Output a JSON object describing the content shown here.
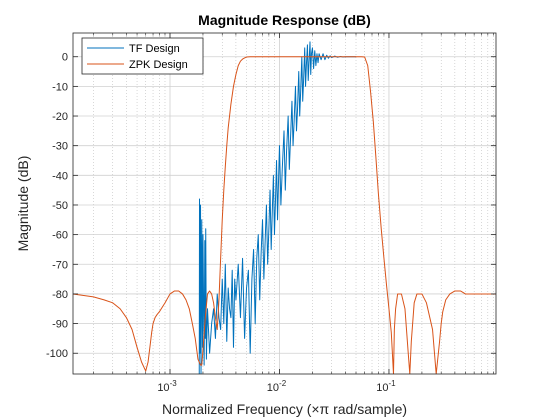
{
  "chart_data": {
    "type": "line",
    "title": "Magnitude Response (dB)",
    "xlabel": "Normalized Frequency (×π rad/sample)",
    "ylabel": "Magnitude (dB)",
    "xscale": "log",
    "xlim": [
      0.00013,
      0.95
    ],
    "ylim": [
      -107,
      8
    ],
    "grid": true,
    "legend_position": "top-left",
    "x_tick_labels": [
      {
        "value": 0.001,
        "base": "10",
        "exp": "-3"
      },
      {
        "value": 0.01,
        "base": "10",
        "exp": "-2"
      },
      {
        "value": 0.1,
        "base": "10",
        "exp": "-1"
      }
    ],
    "y_ticks": [
      0,
      -10,
      -20,
      -30,
      -40,
      -50,
      -60,
      -70,
      -80,
      -90,
      -100
    ],
    "series": [
      {
        "name": "TF Design",
        "color": "#0072BD",
        "x": [
          0.00185,
          0.00186,
          0.00188,
          0.0019,
          0.00192,
          0.00195,
          0.00198,
          0.002,
          0.00205,
          0.00208,
          0.0021,
          0.00212,
          0.00215,
          0.0022,
          0.0023,
          0.0024,
          0.0025,
          0.0026,
          0.0027,
          0.0028,
          0.0029,
          0.003,
          0.0031,
          0.0032,
          0.0033,
          0.0034,
          0.0035,
          0.0036,
          0.0037,
          0.0038,
          0.0039,
          0.004,
          0.0042,
          0.0044,
          0.0046,
          0.0048,
          0.005,
          0.0052,
          0.0054,
          0.0056,
          0.0058,
          0.006,
          0.0062,
          0.0064,
          0.0066,
          0.0068,
          0.007,
          0.0072,
          0.0074,
          0.0076,
          0.0078,
          0.008,
          0.0082,
          0.0084,
          0.0086,
          0.0088,
          0.009,
          0.0092,
          0.0094,
          0.0096,
          0.0098,
          0.01,
          0.0103,
          0.0106,
          0.011,
          0.0113,
          0.0116,
          0.012,
          0.0123,
          0.0126,
          0.013,
          0.0133,
          0.0136,
          0.014,
          0.0143,
          0.0146,
          0.015,
          0.0153,
          0.0156,
          0.016,
          0.0163,
          0.0166,
          0.017,
          0.0173,
          0.0176,
          0.018,
          0.0183,
          0.0186,
          0.019,
          0.0193,
          0.0196,
          0.02,
          0.0205,
          0.021,
          0.0215,
          0.022,
          0.0225,
          0.023,
          0.024,
          0.025,
          0.026,
          0.027,
          0.028,
          0.029,
          0.03,
          0.032,
          0.034,
          0.036,
          0.038,
          0.04,
          0.042,
          0.044,
          0.046,
          0.048,
          0.05
        ],
        "values": [
          -107,
          -48,
          -100,
          -50,
          -107,
          -55,
          -98,
          -60,
          -104,
          -62,
          -95,
          -58,
          -102,
          -85,
          -100,
          -90,
          -85,
          -95,
          -80,
          -88,
          -92,
          -75,
          -90,
          -70,
          -96,
          -78,
          -85,
          -88,
          -72,
          -98,
          -75,
          -82,
          -70,
          -88,
          -68,
          -95,
          -78,
          -72,
          -100,
          -75,
          -65,
          -90,
          -68,
          -60,
          -82,
          -66,
          -55,
          -75,
          -62,
          -50,
          -70,
          -58,
          -45,
          -65,
          -52,
          -40,
          -60,
          -48,
          -35,
          -55,
          -42,
          -30,
          -50,
          -38,
          -25,
          -45,
          -32,
          -20,
          -38,
          -28,
          -15,
          -30,
          -22,
          -10,
          -25,
          -18,
          -5,
          -20,
          -12,
          0,
          -15,
          -8,
          3,
          -10,
          -3,
          4,
          -8,
          -2,
          5,
          -6,
          1,
          3,
          -4,
          2,
          -3,
          1,
          -2,
          1,
          -1,
          1,
          -1,
          0.5,
          -0.5,
          0.3,
          -0.3,
          0.2,
          -0.2,
          0.1,
          -0.1,
          0,
          0,
          0,
          0,
          0,
          0
        ]
      },
      {
        "name": "ZPK Design",
        "color": "#D95319",
        "x": [
          0.00013,
          0.00016,
          0.0002,
          0.00025,
          0.0003,
          0.00035,
          0.0004,
          0.00045,
          0.0005,
          0.00055,
          0.0006,
          0.00063,
          0.00066,
          0.00068,
          0.0007,
          0.00073,
          0.00076,
          0.0008,
          0.0009,
          0.001,
          0.0011,
          0.0012,
          0.0013,
          0.0014,
          0.0015,
          0.0016,
          0.0017,
          0.0018,
          0.0019,
          0.00195,
          0.00198,
          0.0021,
          0.0022,
          0.0023,
          0.0024,
          0.0025,
          0.0026,
          0.0027,
          0.0028,
          0.0029,
          0.003,
          0.0031,
          0.0032,
          0.0033,
          0.0034,
          0.0036,
          0.0038,
          0.004,
          0.0042,
          0.0044,
          0.0046,
          0.0048,
          0.005,
          0.0052,
          0.0054,
          0.0056,
          0.006,
          0.01,
          0.02,
          0.04,
          0.056,
          0.06,
          0.064,
          0.068,
          0.072,
          0.076,
          0.08,
          0.085,
          0.09,
          0.095,
          0.1,
          0.105,
          0.11,
          0.112,
          0.115,
          0.12,
          0.13,
          0.14,
          0.15,
          0.155,
          0.16,
          0.17,
          0.18,
          0.2,
          0.22,
          0.25,
          0.27,
          0.29,
          0.3,
          0.31,
          0.33,
          0.36,
          0.4,
          0.45,
          0.5,
          0.55,
          0.6,
          0.7,
          0.8,
          0.95
        ],
        "values": [
          -80,
          -80.5,
          -81,
          -82,
          -83,
          -85,
          -88,
          -92,
          -98,
          -103,
          -106,
          -103,
          -97,
          -93,
          -90,
          -88,
          -87,
          -86,
          -83,
          -80,
          -79,
          -79,
          -80,
          -82,
          -85,
          -90,
          -95,
          -102,
          -104,
          -104,
          -101,
          -88,
          -80,
          -79,
          -80,
          -83,
          -88,
          -92,
          -82,
          -68,
          -55,
          -45,
          -37,
          -30,
          -24,
          -16,
          -10,
          -6,
          -3,
          -1.5,
          -0.8,
          -0.4,
          -0.1,
          -0.05,
          0,
          0,
          0,
          0,
          0,
          0,
          0,
          -0.1,
          -3,
          -12,
          -22,
          -34,
          -46,
          -58,
          -68,
          -77,
          -85,
          -93,
          -107,
          -92,
          -85,
          -80,
          -80,
          -85,
          -100,
          -107,
          -96,
          -83,
          -80,
          -80,
          -83,
          -92,
          -107,
          -96,
          -90,
          -86,
          -82,
          -80,
          -79,
          -79,
          -80,
          -80,
          -80,
          -80,
          -80,
          -80
        ]
      }
    ]
  }
}
